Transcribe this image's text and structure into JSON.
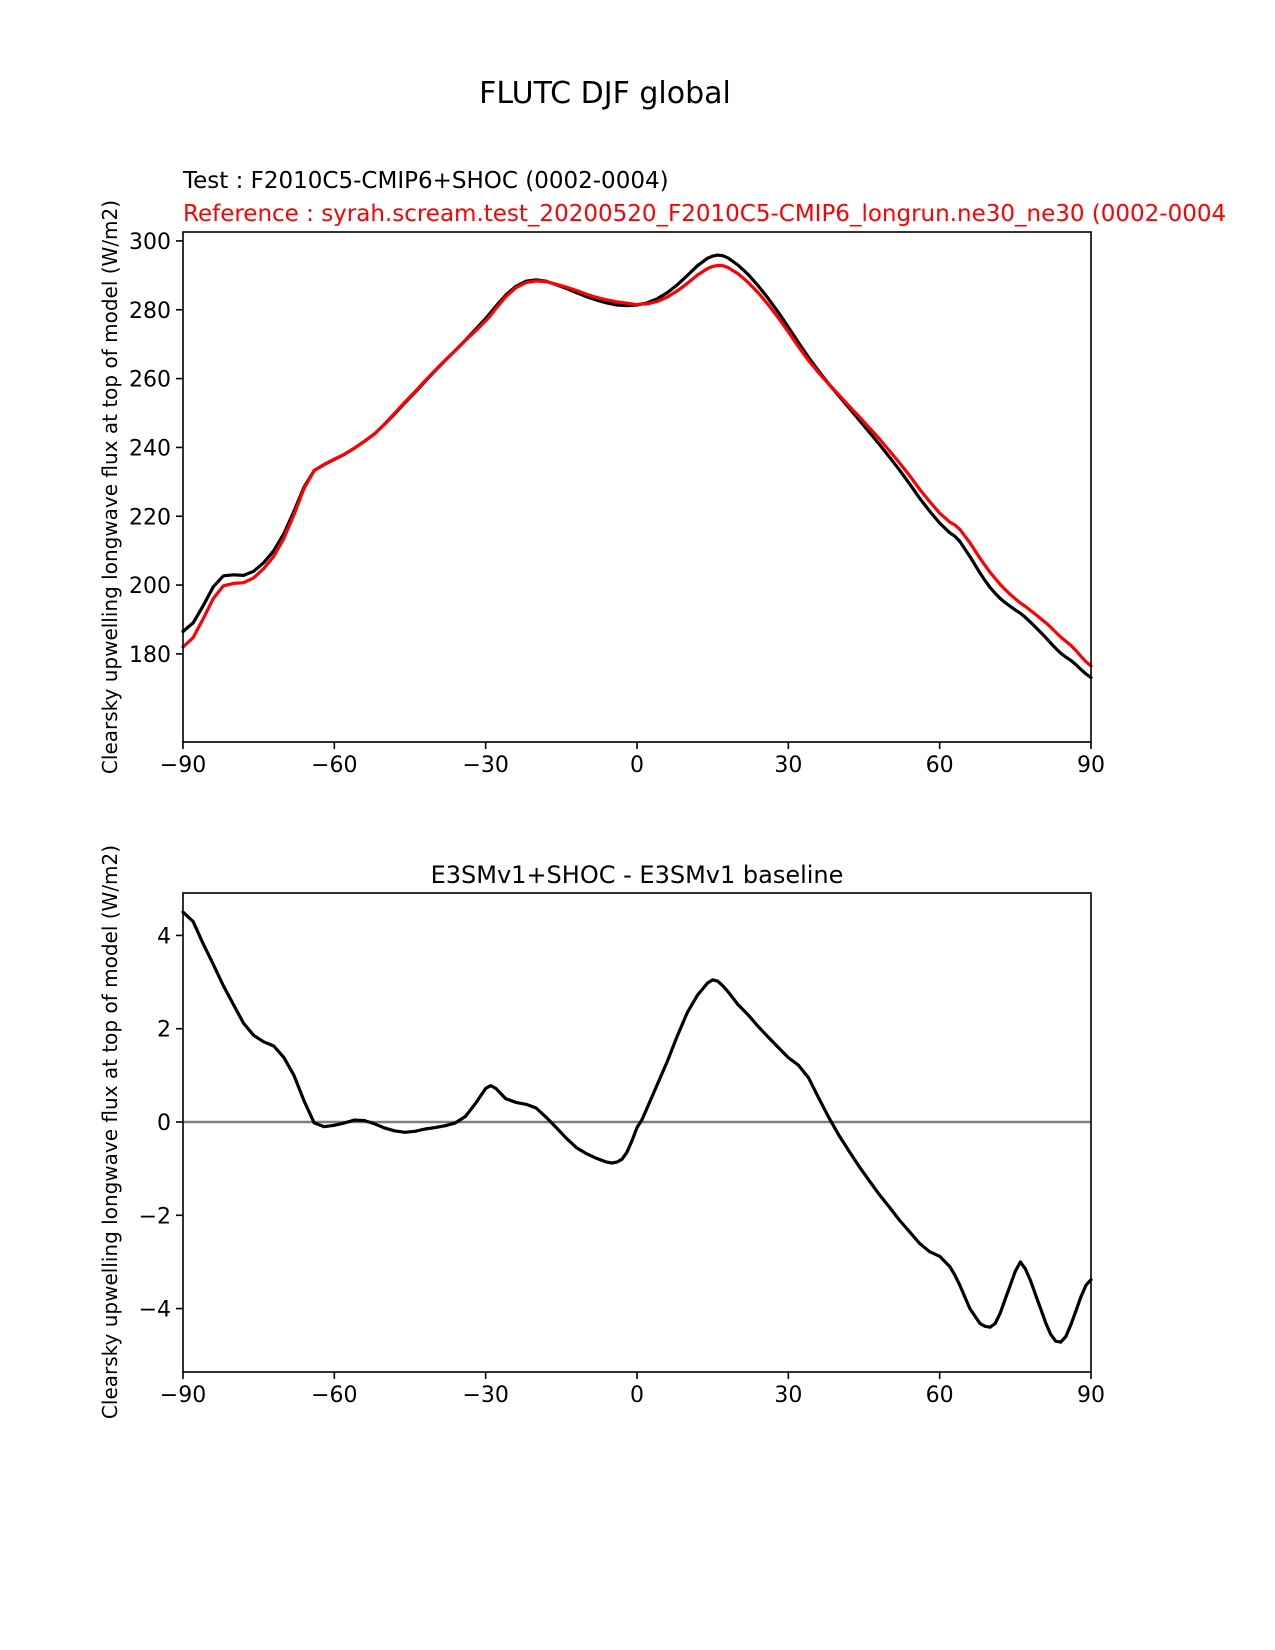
{
  "figure": {
    "title": "FLUTC DJF global"
  },
  "colors": {
    "test_line": "#000000",
    "reference_line": "#ff0000",
    "difference_line": "#000000",
    "zero_line": "#7f7f7f",
    "axis": "#000000"
  },
  "chart_data": [
    {
      "id": "top",
      "type": "line",
      "title": "",
      "xlabel": "",
      "ylabel": "Clearsky upwelling longwave flux at top of model (W/m2)",
      "xlim": [
        -90,
        90
      ],
      "ylim": [
        154.4,
        302.6
      ],
      "xticks": [
        -90,
        -60,
        -30,
        0,
        30,
        60,
        90
      ],
      "yticks": [
        180,
        200,
        220,
        240,
        260,
        280,
        300
      ],
      "grid": false,
      "legend_position": "text-lines-above-axes",
      "x": [
        -90,
        -88,
        -86,
        -84,
        -82,
        -80,
        -78,
        -76,
        -74,
        -72,
        -70,
        -68,
        -66,
        -64,
        -62,
        -60,
        -58,
        -56,
        -54,
        -52,
        -50,
        -48,
        -46,
        -44,
        -42,
        -40,
        -38,
        -36,
        -34,
        -32,
        -30,
        -29,
        -28,
        -26,
        -24,
        -22,
        -20,
        -18,
        -16,
        -14,
        -12,
        -10,
        -8,
        -6,
        -5,
        -4,
        -3,
        -2,
        -1,
        0,
        1,
        2,
        4,
        6,
        8,
        10,
        12,
        14,
        15,
        16,
        17,
        18,
        20,
        22,
        24,
        26,
        28,
        30,
        32,
        34,
        36,
        38,
        40,
        42,
        44,
        46,
        48,
        50,
        52,
        54,
        56,
        58,
        60,
        62,
        63,
        64,
        66,
        68,
        69,
        70,
        71,
        72,
        73,
        74,
        75,
        76,
        77,
        78,
        79,
        80,
        81,
        82,
        83,
        84,
        85,
        86,
        87,
        88,
        89,
        90
      ],
      "series": [
        {
          "key": "test",
          "name": "Test : F2010C5-CMIP6+SHOC (0002-0004)",
          "color": "#000000",
          "y": [
            186.5,
            189.0,
            194.0,
            199.5,
            202.7,
            203.0,
            202.8,
            204.0,
            206.5,
            210.0,
            215.0,
            221.5,
            228.5,
            233.3,
            235.0,
            236.5,
            238.0,
            239.8,
            241.8,
            244.0,
            246.8,
            249.8,
            253.0,
            256.0,
            259.2,
            262.3,
            265.3,
            268.2,
            271.2,
            274.3,
            277.5,
            279.2,
            281.0,
            284.3,
            286.8,
            288.3,
            288.7,
            288.3,
            287.3,
            286.2,
            285.0,
            283.8,
            282.8,
            282.0,
            281.7,
            281.4,
            281.3,
            281.2,
            281.3,
            281.4,
            281.7,
            282.0,
            283.2,
            285.0,
            287.3,
            290.0,
            292.8,
            295.0,
            295.6,
            295.9,
            295.7,
            295.1,
            293.0,
            290.3,
            287.0,
            283.3,
            279.3,
            275.0,
            270.5,
            266.2,
            262.2,
            258.5,
            255.0,
            251.5,
            248.0,
            244.5,
            241.0,
            237.3,
            233.5,
            229.5,
            225.3,
            221.5,
            218.0,
            215.2,
            214.2,
            212.7,
            208.3,
            203.5,
            201.3,
            199.3,
            197.6,
            196.1,
            194.9,
            193.8,
            192.8,
            191.8,
            190.6,
            189.2,
            187.8,
            186.3,
            184.8,
            183.2,
            181.6,
            180.2,
            179.1,
            178.1,
            176.9,
            175.5,
            174.2,
            173.1
          ]
        },
        {
          "key": "reference",
          "name": "Reference : syrah.scream.test_20200520_F2010C5-CMIP6_longrun.ne30_ne30 (0002-0004",
          "color": "#ff0000",
          "y": [
            182.0,
            184.7,
            190.2,
            196.1,
            199.8,
            200.5,
            200.7,
            202.1,
            204.8,
            208.4,
            213.6,
            220.5,
            228.1,
            233.3,
            235.1,
            236.6,
            238.0,
            239.8,
            241.8,
            244.0,
            246.9,
            250.0,
            253.2,
            256.2,
            259.4,
            262.4,
            265.4,
            268.2,
            271.1,
            273.9,
            276.8,
            278.4,
            280.3,
            283.8,
            286.4,
            287.9,
            288.4,
            288.2,
            287.4,
            286.6,
            285.6,
            284.5,
            283.6,
            282.9,
            282.6,
            282.3,
            282.1,
            281.9,
            281.7,
            281.5,
            281.7,
            281.7,
            282.4,
            283.7,
            285.5,
            287.7,
            290.1,
            292.0,
            292.6,
            292.9,
            292.8,
            292.3,
            290.5,
            288.0,
            285.0,
            281.5,
            277.7,
            273.6,
            269.3,
            265.3,
            261.7,
            258.4,
            255.3,
            252.1,
            249.0,
            245.8,
            242.6,
            239.1,
            235.6,
            231.9,
            227.9,
            224.3,
            220.9,
            218.3,
            217.5,
            216.2,
            212.3,
            207.8,
            205.7,
            203.7,
            201.9,
            200.2,
            198.7,
            197.3,
            196.0,
            194.8,
            193.8,
            192.6,
            191.5,
            190.3,
            189.1,
            187.8,
            186.3,
            184.9,
            183.7,
            182.5,
            181.0,
            179.3,
            177.7,
            176.5
          ]
        }
      ]
    },
    {
      "id": "bottom",
      "type": "line",
      "title": "E3SMv1+SHOC - E3SMv1 baseline",
      "xlabel": "",
      "ylabel": "Clearsky upwelling longwave flux at top of model (W/m2)",
      "xlim": [
        -90,
        90
      ],
      "ylim": [
        -5.36,
        4.91
      ],
      "xticks": [
        -90,
        -60,
        -30,
        0,
        30,
        60,
        90
      ],
      "yticks": [
        -4,
        -2,
        0,
        2,
        4
      ],
      "grid": false,
      "zero_line": true,
      "x": [
        -90,
        -88,
        -86,
        -84,
        -82,
        -80,
        -78,
        -76,
        -74,
        -72,
        -70,
        -68,
        -66,
        -64,
        -62,
        -60,
        -58,
        -56,
        -54,
        -52,
        -50,
        -48,
        -46,
        -44,
        -42,
        -40,
        -38,
        -36,
        -34,
        -32,
        -30,
        -29,
        -28,
        -26,
        -24,
        -22,
        -20,
        -18,
        -16,
        -14,
        -12,
        -10,
        -8,
        -6,
        -5,
        -4,
        -3,
        -2,
        -1,
        0,
        1,
        2,
        4,
        6,
        8,
        10,
        12,
        14,
        15,
        16,
        17,
        18,
        20,
        22,
        24,
        26,
        28,
        30,
        32,
        34,
        36,
        38,
        40,
        42,
        44,
        46,
        48,
        50,
        52,
        54,
        56,
        58,
        60,
        62,
        63,
        64,
        66,
        68,
        69,
        70,
        71,
        72,
        73,
        74,
        75,
        76,
        77,
        78,
        79,
        80,
        81,
        82,
        83,
        84,
        85,
        86,
        87,
        88,
        89,
        90
      ],
      "series": [
        {
          "key": "difference",
          "name": "E3SMv1+SHOC - E3SMv1 baseline",
          "color": "#000000",
          "y": [
            4.5,
            4.3,
            3.82,
            3.38,
            2.92,
            2.52,
            2.12,
            1.86,
            1.72,
            1.63,
            1.38,
            1.0,
            0.45,
            -0.02,
            -0.1,
            -0.07,
            -0.02,
            0.04,
            0.03,
            -0.04,
            -0.13,
            -0.19,
            -0.22,
            -0.2,
            -0.15,
            -0.12,
            -0.08,
            -0.02,
            0.12,
            0.4,
            0.72,
            0.78,
            0.72,
            0.5,
            0.42,
            0.38,
            0.3,
            0.1,
            -0.12,
            -0.35,
            -0.55,
            -0.68,
            -0.78,
            -0.86,
            -0.88,
            -0.86,
            -0.8,
            -0.65,
            -0.4,
            -0.12,
            0.05,
            0.3,
            0.8,
            1.3,
            1.85,
            2.35,
            2.72,
            2.98,
            3.05,
            3.02,
            2.92,
            2.8,
            2.52,
            2.3,
            2.05,
            1.82,
            1.6,
            1.38,
            1.22,
            0.95,
            0.52,
            0.1,
            -0.28,
            -0.62,
            -0.95,
            -1.25,
            -1.55,
            -1.82,
            -2.1,
            -2.35,
            -2.6,
            -2.78,
            -2.88,
            -3.1,
            -3.28,
            -3.5,
            -4.0,
            -4.32,
            -4.38,
            -4.4,
            -4.32,
            -4.1,
            -3.8,
            -3.5,
            -3.2,
            -3.0,
            -3.15,
            -3.4,
            -3.7,
            -4.0,
            -4.3,
            -4.55,
            -4.7,
            -4.72,
            -4.6,
            -4.35,
            -4.05,
            -3.75,
            -3.5,
            -3.38
          ]
        }
      ]
    }
  ]
}
